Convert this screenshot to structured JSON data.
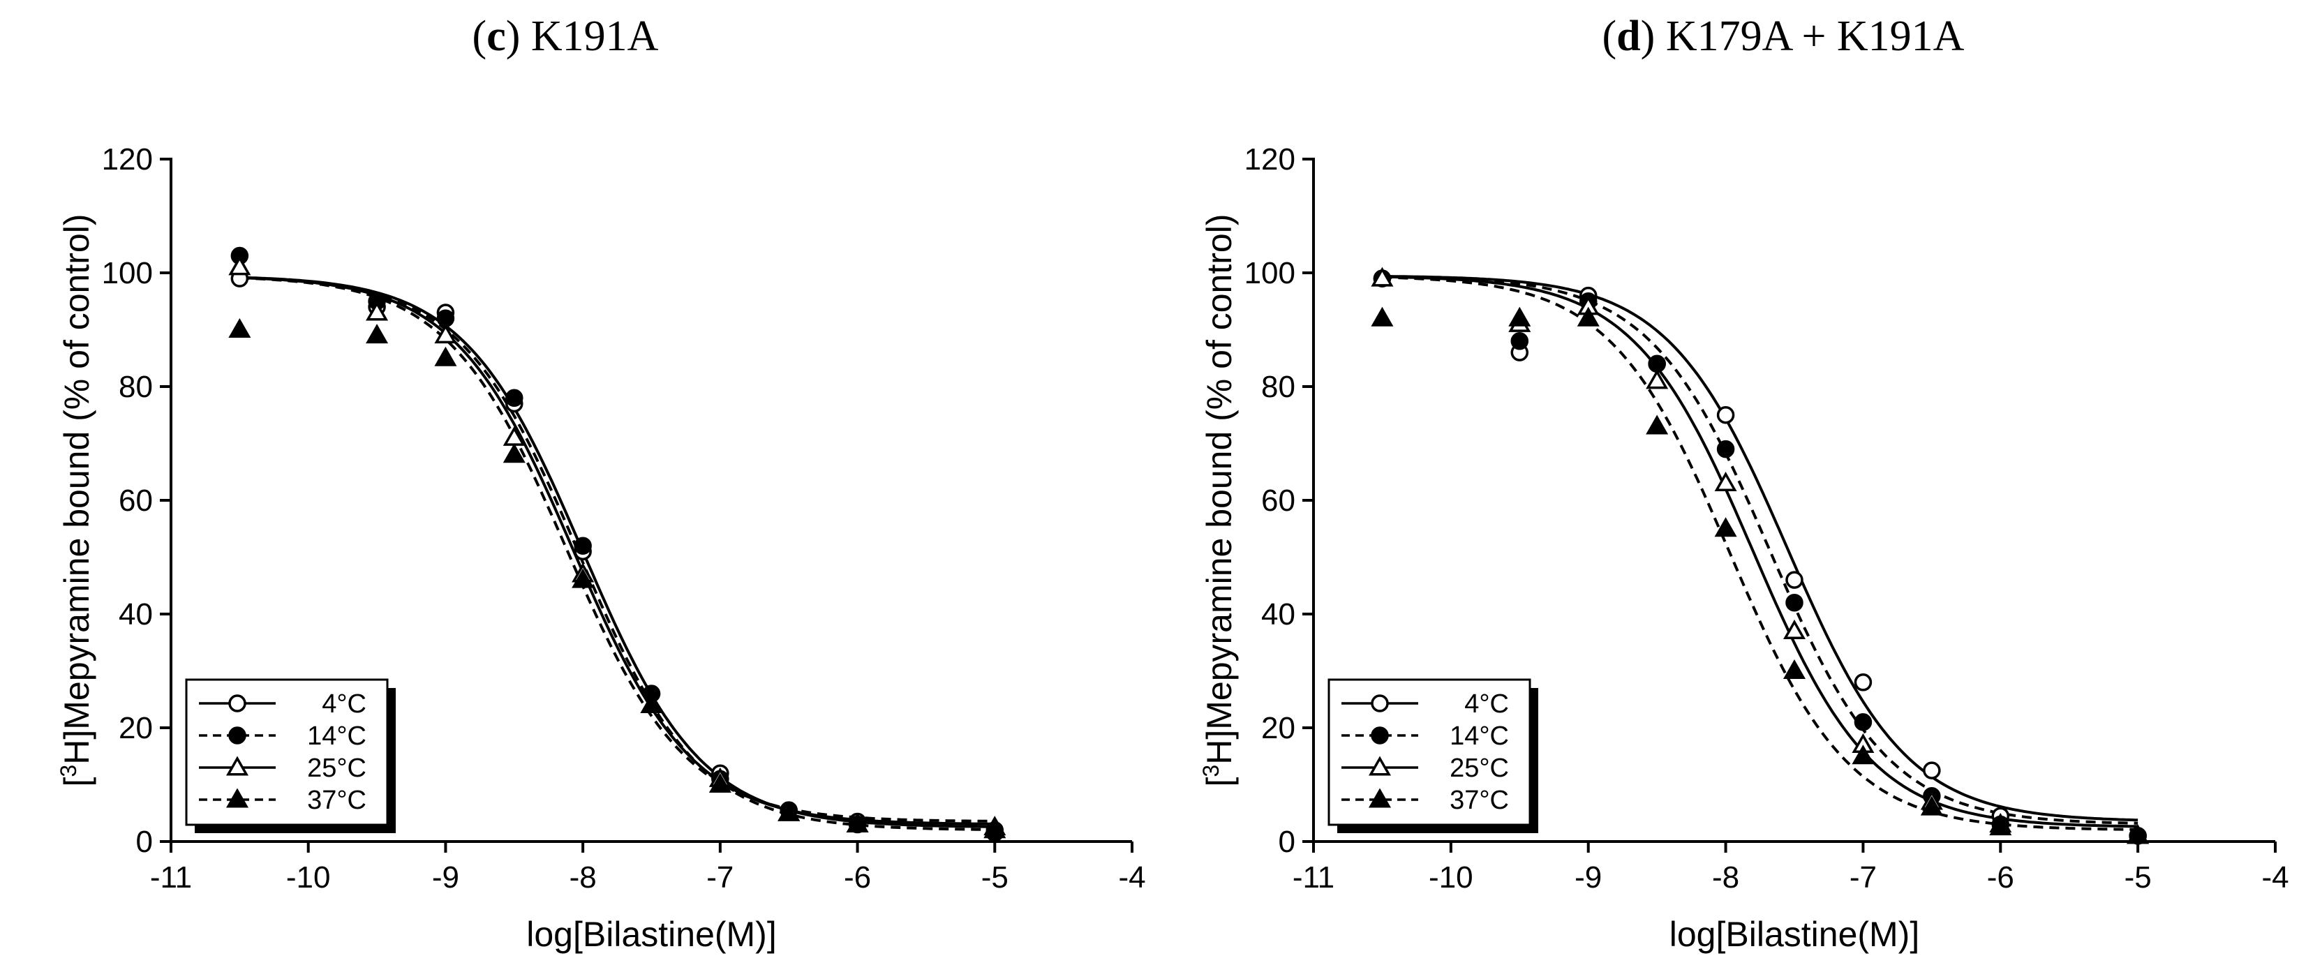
{
  "chart_data": [
    {
      "type": "scatter",
      "title_letter": "(c)",
      "title": "K191A",
      "xlabel": "log[Bilastine(M)]",
      "ylabel_sup": "3",
      "ylabel_pre": "[",
      "ylabel_post": "H]Mepyramine bound (% of control)",
      "xlim": [
        -11,
        -4
      ],
      "ylim": [
        0,
        120
      ],
      "x_ticks": [
        -11,
        -10,
        -9,
        -8,
        -7,
        -6,
        -5,
        -4
      ],
      "y_ticks": [
        0,
        20,
        40,
        60,
        80,
        100,
        120
      ],
      "legend_position": "bottom-left",
      "series": [
        {
          "name": "4°C",
          "marker": "open-circle",
          "line": "solid",
          "x": [
            -10.5,
            -9.5,
            -9,
            -8.5,
            -8,
            -7.5,
            -7,
            -6.5,
            -6,
            -5
          ],
          "y": [
            99,
            94,
            93,
            77,
            51,
            26,
            12,
            5.5,
            3.5,
            2
          ],
          "fit": {
            "top": 99.5,
            "bottom": 2.5,
            "logIC50": -8.0,
            "hill": 1.0
          }
        },
        {
          "name": "14°C",
          "marker": "filled-circle",
          "line": "dashed",
          "x": [
            -10.5,
            -9.5,
            -9,
            -8.5,
            -8,
            -7.5,
            -7,
            -6.5,
            -6,
            -5
          ],
          "y": [
            103,
            95,
            92,
            78,
            52,
            26,
            11,
            5.5,
            3,
            1.5
          ],
          "fit": {
            "top": 99.5,
            "bottom": 2.0,
            "logIC50": -8.03,
            "hill": 1.0
          }
        },
        {
          "name": "25°C",
          "marker": "open-triangle",
          "line": "solid",
          "x": [
            -10.5,
            -9.5,
            -9,
            -8.5,
            -8,
            -7.5,
            -7,
            -6.5,
            -6,
            -5
          ],
          "y": [
            101,
            93,
            89,
            71,
            47,
            24,
            11,
            5,
            3,
            2.5
          ],
          "fit": {
            "top": 99.5,
            "bottom": 3.0,
            "logIC50": -8.07,
            "hill": 1.0
          }
        },
        {
          "name": "37°C",
          "marker": "filled-triangle",
          "line": "dashed",
          "x": [
            -10.5,
            -9.5,
            -9,
            -8.5,
            -8,
            -7.5,
            -7,
            -6.5,
            -6,
            -5
          ],
          "y": [
            90,
            89,
            85,
            68,
            46,
            24,
            10,
            5,
            3,
            2
          ],
          "fit": {
            "top": 99.5,
            "bottom": 3.5,
            "logIC50": -8.12,
            "hill": 1.0
          }
        }
      ]
    },
    {
      "type": "scatter",
      "title_letter": "(d)",
      "title": "K179A + K191A",
      "xlabel": "log[Bilastine(M)]",
      "ylabel_sup": "3",
      "ylabel_pre": "[",
      "ylabel_post": "H]Mepyramine bound (% of control)",
      "xlim": [
        -11,
        -4
      ],
      "ylim": [
        0,
        120
      ],
      "x_ticks": [
        -11,
        -10,
        -9,
        -8,
        -7,
        -6,
        -5,
        -4
      ],
      "y_ticks": [
        0,
        20,
        40,
        60,
        80,
        100,
        120
      ],
      "legend_position": "bottom-left",
      "series": [
        {
          "name": "4°C",
          "marker": "open-circle",
          "line": "solid",
          "x": [
            -10.5,
            -9.5,
            -9,
            -8.5,
            -8,
            -7.5,
            -7,
            -6.5,
            -6,
            -5
          ],
          "y": [
            99,
            86,
            96,
            84,
            75,
            46,
            28,
            12.5,
            4.5,
            1
          ],
          "fit": {
            "top": 99.5,
            "bottom": 3.5,
            "logIC50": -7.55,
            "hill": 1.0
          }
        },
        {
          "name": "14°C",
          "marker": "filled-circle",
          "line": "dashed",
          "x": [
            -10.5,
            -9.5,
            -9,
            -8.5,
            -8,
            -7.5,
            -7,
            -6.5,
            -6,
            -5
          ],
          "y": [
            99,
            88,
            95,
            84,
            69,
            42,
            21,
            8,
            3,
            1
          ],
          "fit": {
            "top": 99.5,
            "bottom": 3.0,
            "logIC50": -7.68,
            "hill": 1.0
          }
        },
        {
          "name": "25°C",
          "marker": "open-triangle",
          "line": "solid",
          "x": [
            -10.5,
            -9.5,
            -9,
            -8.5,
            -8,
            -7.5,
            -7,
            -6.5,
            -6,
            -5
          ],
          "y": [
            99,
            91,
            94,
            81,
            63,
            37,
            17,
            7,
            3,
            1
          ],
          "fit": {
            "top": 99.5,
            "bottom": 2.5,
            "logIC50": -7.8,
            "hill": 1.0
          }
        },
        {
          "name": "37°C",
          "marker": "filled-triangle",
          "line": "dashed",
          "x": [
            -10.5,
            -9.5,
            -9,
            -8.5,
            -8,
            -7.5,
            -7,
            -6.5,
            -6,
            -5
          ],
          "y": [
            92,
            92,
            92,
            73,
            55,
            30,
            15,
            6,
            2.5,
            1
          ],
          "fit": {
            "top": 99.5,
            "bottom": 2.0,
            "logIC50": -7.97,
            "hill": 1.0
          }
        }
      ]
    }
  ]
}
